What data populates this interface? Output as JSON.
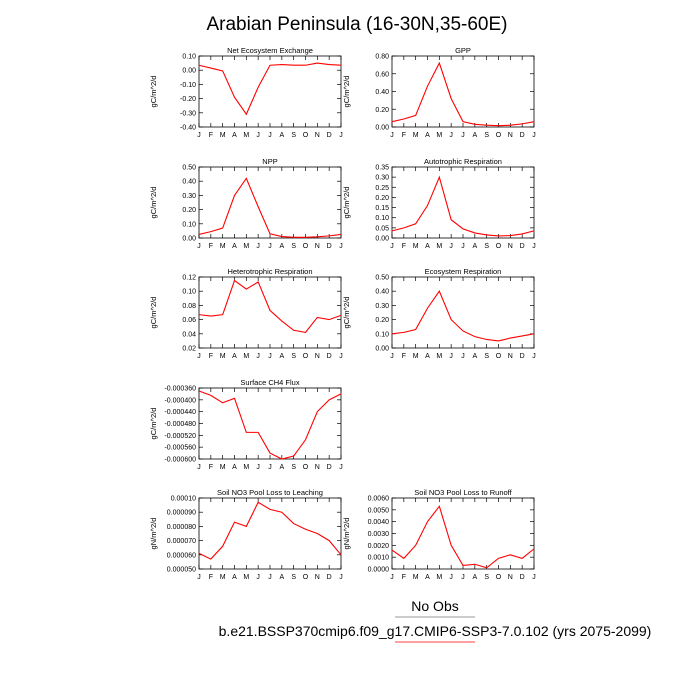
{
  "figure": {
    "title": "Arabian Peninsula (16-30N,35-60E)",
    "legend": [
      {
        "label": "No Obs",
        "color": "#777777"
      },
      {
        "label": "b.e21.BSSP370cmip6.f09_g17.CMIP6-SSP3-7.0.102 (yrs 2075-2099)",
        "color": "#ff0000"
      }
    ],
    "line_color": "#ff0000"
  },
  "chart_data": [
    {
      "type": "line",
      "title": "Net Ecosystem Exchange",
      "ylabel": "gC/m^2/d",
      "x": [
        "J",
        "F",
        "M",
        "A",
        "M",
        "J",
        "J",
        "A",
        "S",
        "O",
        "N",
        "D",
        "J"
      ],
      "ylim": [
        -0.4,
        0.1
      ],
      "yticks": [
        "0.10",
        "0.00",
        "-0.10",
        "-0.20",
        "-0.30",
        "-0.40"
      ],
      "ytick_values": [
        0.1,
        0.0,
        -0.1,
        -0.2,
        -0.3,
        -0.4
      ],
      "series": [
        {
          "values": [
            0.035,
            0.015,
            -0.005,
            -0.19,
            -0.31,
            -0.12,
            0.035,
            0.04,
            0.035,
            0.035,
            0.05,
            0.04,
            0.035
          ]
        }
      ]
    },
    {
      "type": "line",
      "title": "GPP",
      "ylabel": "gC/m^2/d",
      "x": [
        "J",
        "F",
        "M",
        "A",
        "M",
        "J",
        "J",
        "A",
        "S",
        "O",
        "N",
        "D",
        "J"
      ],
      "ylim": [
        0.0,
        0.8
      ],
      "yticks": [
        "0.80",
        "0.60",
        "0.40",
        "0.20",
        "0.00"
      ],
      "ytick_values": [
        0.8,
        0.6,
        0.4,
        0.2,
        0.0
      ],
      "series": [
        {
          "values": [
            0.06,
            0.09,
            0.13,
            0.46,
            0.72,
            0.32,
            0.06,
            0.03,
            0.02,
            0.015,
            0.02,
            0.035,
            0.06
          ]
        }
      ]
    },
    {
      "type": "line",
      "title": "NPP",
      "ylabel": "gC/m^2/d",
      "x": [
        "J",
        "F",
        "M",
        "A",
        "M",
        "J",
        "J",
        "A",
        "S",
        "O",
        "N",
        "D",
        "J"
      ],
      "ylim": [
        0.0,
        0.5
      ],
      "yticks": [
        "0.50",
        "0.40",
        "0.30",
        "0.20",
        "0.10",
        "0.00"
      ],
      "ytick_values": [
        0.5,
        0.4,
        0.3,
        0.2,
        0.1,
        0.0
      ],
      "series": [
        {
          "values": [
            0.025,
            0.045,
            0.07,
            0.3,
            0.42,
            0.22,
            0.03,
            0.01,
            0.005,
            0.005,
            0.008,
            0.015,
            0.025
          ]
        }
      ]
    },
    {
      "type": "line",
      "title": "Autotrophic Respiration",
      "ylabel": "gC/m^2/d",
      "x": [
        "J",
        "F",
        "M",
        "A",
        "M",
        "J",
        "J",
        "A",
        "S",
        "O",
        "N",
        "D",
        "J"
      ],
      "ylim": [
        0.0,
        0.35
      ],
      "yticks": [
        "0.35",
        "0.30",
        "0.25",
        "0.20",
        "0.15",
        "0.10",
        "0.05",
        "0.00"
      ],
      "ytick_values": [
        0.35,
        0.3,
        0.25,
        0.2,
        0.15,
        0.1,
        0.05,
        0.0
      ],
      "series": [
        {
          "values": [
            0.035,
            0.05,
            0.07,
            0.16,
            0.3,
            0.09,
            0.045,
            0.025,
            0.015,
            0.01,
            0.012,
            0.02,
            0.035
          ]
        }
      ]
    },
    {
      "type": "line",
      "title": "Heterotrophic Respiration",
      "ylabel": "gC/m^2/d",
      "x": [
        "J",
        "F",
        "M",
        "A",
        "M",
        "J",
        "J",
        "A",
        "S",
        "O",
        "N",
        "D",
        "J"
      ],
      "ylim": [
        0.02,
        0.12
      ],
      "yticks": [
        "0.12",
        "0.10",
        "0.08",
        "0.06",
        "0.04",
        "0.02"
      ],
      "ytick_values": [
        0.12,
        0.1,
        0.08,
        0.06,
        0.04,
        0.02
      ],
      "series": [
        {
          "values": [
            0.067,
            0.065,
            0.067,
            0.115,
            0.103,
            0.113,
            0.073,
            0.058,
            0.045,
            0.042,
            0.063,
            0.06,
            0.066
          ]
        }
      ]
    },
    {
      "type": "line",
      "title": "Ecosystem Respiration",
      "ylabel": "gC/m^2/d",
      "x": [
        "J",
        "F",
        "M",
        "A",
        "M",
        "J",
        "J",
        "A",
        "S",
        "O",
        "N",
        "D",
        "J"
      ],
      "ylim": [
        0.0,
        0.5
      ],
      "yticks": [
        "0.50",
        "0.40",
        "0.30",
        "0.20",
        "0.10",
        "0.00"
      ],
      "ytick_values": [
        0.5,
        0.4,
        0.3,
        0.2,
        0.1,
        0.0
      ],
      "series": [
        {
          "values": [
            0.1,
            0.11,
            0.13,
            0.28,
            0.4,
            0.2,
            0.12,
            0.08,
            0.06,
            0.05,
            0.07,
            0.085,
            0.1
          ]
        }
      ]
    },
    {
      "type": "line",
      "title": "Surface CH4 Flux",
      "ylabel": "gC/m^2/d",
      "x": [
        "J",
        "F",
        "M",
        "A",
        "M",
        "J",
        "J",
        "A",
        "S",
        "O",
        "N",
        "D",
        "J"
      ],
      "ylim": [
        -0.0006,
        -0.00036
      ],
      "yticks": [
        "-0.000360",
        "-0.000400",
        "-0.000440",
        "-0.000480",
        "-0.000520",
        "-0.000560",
        "-0.000600"
      ],
      "ytick_values": [
        -0.00036,
        -0.0004,
        -0.00044,
        -0.00048,
        -0.00052,
        -0.00056,
        -0.0006
      ],
      "series": [
        {
          "values": [
            -0.00037,
            -0.000385,
            -0.00041,
            -0.000395,
            -0.00051,
            -0.00051,
            -0.00058,
            -0.0006,
            -0.00059,
            -0.000535,
            -0.00044,
            -0.0004,
            -0.00038
          ]
        }
      ]
    },
    {
      "type": "line",
      "title": "Soil NO3 Pool Loss to Leaching",
      "ylabel": "gN/m^2/d",
      "x": [
        "J",
        "F",
        "M",
        "A",
        "M",
        "J",
        "J",
        "A",
        "S",
        "O",
        "N",
        "D",
        "J"
      ],
      "ylim": [
        5e-05,
        0.0001
      ],
      "yticks": [
        "0.00010",
        "0.000090",
        "0.000080",
        "0.000070",
        "0.000060",
        "0.000050"
      ],
      "ytick_values": [
        0.0001,
        9e-05,
        8e-05,
        7e-05,
        6e-05,
        5e-05
      ],
      "series": [
        {
          "values": [
            6.1e-05,
            5.7e-05,
            6.6e-05,
            8.3e-05,
            8e-05,
            9.7e-05,
            9.2e-05,
            9e-05,
            8.2e-05,
            7.8e-05,
            7.5e-05,
            7e-05,
            6e-05
          ]
        }
      ]
    },
    {
      "type": "line",
      "title": "Soil NO3 Pool Loss to Runoff",
      "ylabel": "gN/m^2/d",
      "x": [
        "J",
        "F",
        "M",
        "A",
        "M",
        "J",
        "J",
        "A",
        "S",
        "O",
        "N",
        "D",
        "J"
      ],
      "ylim": [
        0.0,
        0.006
      ],
      "yticks": [
        "0.0060",
        "0.0050",
        "0.0040",
        "0.0030",
        "0.0020",
        "0.0010",
        "0.0000"
      ],
      "ytick_values": [
        0.006,
        0.005,
        0.004,
        0.003,
        0.002,
        0.001,
        0.0
      ],
      "series": [
        {
          "values": [
            0.0016,
            0.0009,
            0.002,
            0.004,
            0.0053,
            0.002,
            0.0003,
            0.0004,
            0.0001,
            0.0009,
            0.0012,
            0.0009,
            0.0017
          ]
        }
      ]
    }
  ]
}
